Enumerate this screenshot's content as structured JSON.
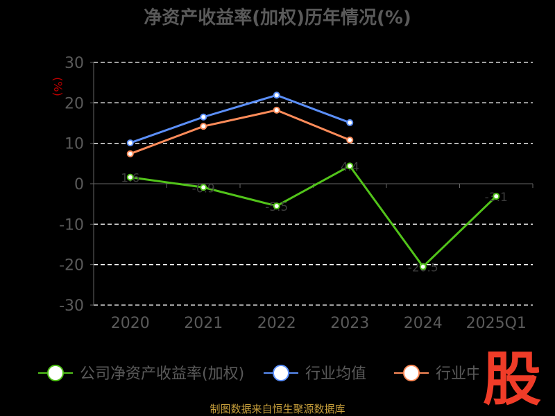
{
  "chart_data": {
    "type": "line",
    "title": "净资产收益率(加权)历年情况(%)",
    "ylabel": "(%)",
    "categories": [
      "2020",
      "2021",
      "2022",
      "2023",
      "2024",
      "2025Q1"
    ],
    "ylim": [
      -30,
      30
    ],
    "yticks": [
      30,
      20,
      10,
      0,
      -10,
      -20,
      -30
    ],
    "grid": true,
    "legend_position": "bottom",
    "series": [
      {
        "name": "公司净资产收益率(加权)",
        "color": "#52c41a",
        "values": [
          1.6,
          -0.9,
          -5.5,
          4.4,
          -20.5,
          -3.1
        ],
        "labels": [
          "1.6",
          "-0.9",
          "-5.5",
          "4.4",
          "-20.5",
          "-3.1"
        ]
      },
      {
        "name": "行业均值",
        "color": "#5b8ff9",
        "values": [
          10.1,
          16.5,
          21.9,
          15.1,
          null,
          null
        ]
      },
      {
        "name": "行业中位数",
        "color": "#ff8c5a",
        "values": [
          7.4,
          14.2,
          18.2,
          10.8,
          null,
          null
        ]
      }
    ]
  },
  "source": "制图数据来自恒生聚源数据库",
  "logo": {
    "text": "股",
    "color": "#f03c28"
  }
}
